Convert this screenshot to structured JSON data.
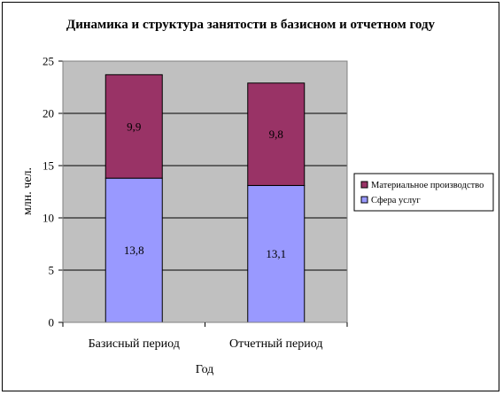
{
  "chart_data": {
    "type": "bar",
    "stacked": true,
    "title": "Динамика и структура занятости в базисном и отчетном году",
    "xlabel": "Год",
    "ylabel": "млн. чел.",
    "categories": [
      "Базисный период",
      "Отчетный период"
    ],
    "series": [
      {
        "name": "Сфера услуг",
        "values": [
          13.8,
          13.1
        ],
        "labels": [
          "13,8",
          "13,1"
        ],
        "color": "#9999ff"
      },
      {
        "name": "Материальное производство",
        "values": [
          9.9,
          9.8
        ],
        "labels": [
          "9,9",
          "9,8"
        ],
        "color": "#993366"
      }
    ],
    "ylim": [
      0,
      25
    ],
    "yticks": [
      "0",
      "5",
      "10",
      "15",
      "20",
      "25"
    ],
    "grid": true,
    "plot_background": "#c0c0c0",
    "legend_position": "right"
  }
}
